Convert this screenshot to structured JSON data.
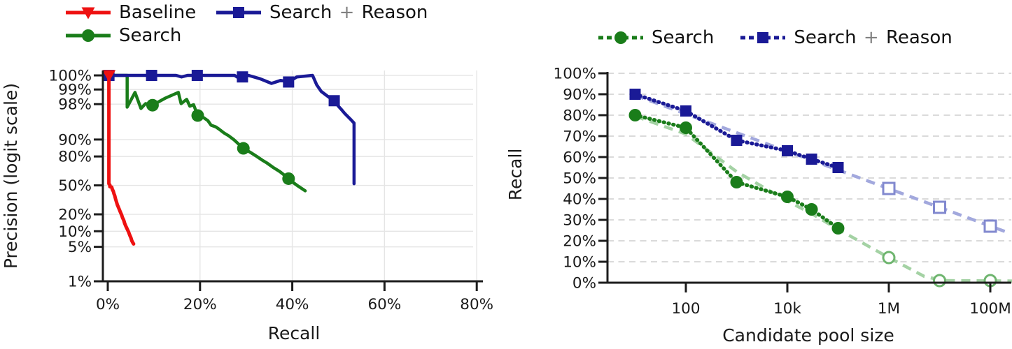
{
  "colors": {
    "baseline_red": "#ee1111",
    "search_green": "#1a7d1a",
    "reason_navy": "#1a1a96",
    "trend_navy": "#a2a8dd",
    "trend_green": "#a4d2a4",
    "hollow_navy": "#8289cf",
    "hollow_green": "#6fb56f",
    "grid_left": "#e5e5e5",
    "grid_right": "#dadada",
    "axis": "#1c1c1c",
    "text": "#1a1a1a",
    "plus_sign": "#808080"
  },
  "chart_data": [
    {
      "type": "line",
      "title": "",
      "xlabel": "Recall",
      "ylabel": "Precision (logit scale)",
      "y_scale": "logit",
      "x_scale": "linear",
      "grid": true,
      "legend_position": "top",
      "xlim": [
        0,
        83
      ],
      "x_ticks": [
        {
          "label": "0%",
          "value": 0
        },
        {
          "label": "20%",
          "value": 20
        },
        {
          "label": "40%",
          "value": 40
        },
        {
          "label": "60%",
          "value": 60
        },
        {
          "label": "80%",
          "value": 80
        }
      ],
      "y_ticks": [
        {
          "label": "100%",
          "value": 100
        },
        {
          "label": "99%",
          "value": 99
        },
        {
          "label": "98%",
          "value": 98
        },
        {
          "label": "90%",
          "value": 90
        },
        {
          "label": "80%",
          "value": 80
        },
        {
          "label": "50%",
          "value": 50
        },
        {
          "label": "20%",
          "value": 20
        },
        {
          "label": "10%",
          "value": 10
        },
        {
          "label": "5%",
          "value": 5
        },
        {
          "label": "1%",
          "value": 1
        }
      ],
      "legend": [
        {
          "label": "Baseline",
          "series": "Baseline"
        },
        {
          "label": "Search + Reason",
          "series": "Search + Reason"
        },
        {
          "label": "Search",
          "series": "Search"
        }
      ],
      "series": [
        {
          "name": "Search",
          "marker": "circle",
          "line": "solid",
          "color_key": "search_green",
          "points": [
            [
              0,
              100
            ],
            [
              4.2,
              100
            ],
            [
              4.2,
              97.7
            ],
            [
              5.9,
              98.85
            ],
            [
              7.2,
              97.55
            ],
            [
              8.2,
              98.05
            ],
            [
              9.7,
              97.9
            ],
            [
              12.5,
              98.5
            ],
            [
              15.3,
              98.85
            ],
            [
              15.9,
              98.05
            ],
            [
              17.1,
              98.4
            ],
            [
              17.8,
              97.8
            ],
            [
              18.6,
              97.95
            ],
            [
              19.5,
              96.6
            ],
            [
              20.7,
              96.3
            ],
            [
              21.7,
              95.7
            ],
            [
              22.4,
              94.7
            ],
            [
              23.4,
              94.3
            ],
            [
              24.1,
              93.7
            ],
            [
              25.2,
              92.5
            ],
            [
              26.2,
              91.5
            ],
            [
              27.3,
              90
            ],
            [
              28.3,
              88
            ],
            [
              29.4,
              85.5
            ],
            [
              30.9,
              83
            ],
            [
              32.3,
              80
            ],
            [
              33.5,
              77
            ],
            [
              34.5,
              74.5
            ],
            [
              35.8,
              70.5
            ],
            [
              37.3,
              66
            ],
            [
              38.3,
              62
            ],
            [
              39.2,
              58
            ],
            [
              40.3,
              53
            ],
            [
              41.3,
              49
            ],
            [
              42.8,
              43.5
            ]
          ],
          "marker_points": [
            [
              9.7,
              97.9
            ],
            [
              19.5,
              96.6
            ],
            [
              29.4,
              85.5
            ],
            [
              39.2,
              58
            ]
          ]
        },
        {
          "name": "Search + Reason",
          "marker": "square",
          "line": "solid",
          "color_key": "reason_navy",
          "points": [
            [
              0,
              100
            ],
            [
              14.8,
              100
            ],
            [
              16,
              99.45
            ],
            [
              17.3,
              99.55
            ],
            [
              19.4,
              100
            ],
            [
              22,
              99.85
            ],
            [
              24,
              99.55
            ],
            [
              27.5,
              99.6
            ],
            [
              28.6,
              99.4
            ],
            [
              30.5,
              99.5
            ],
            [
              33,
              99.4
            ],
            [
              35.5,
              99.25
            ],
            [
              37.5,
              99.35
            ],
            [
              39.2,
              99.3
            ],
            [
              41,
              99.45
            ],
            [
              44.4,
              99.5
            ],
            [
              45.3,
              99.2
            ],
            [
              46.3,
              98.9
            ],
            [
              47.3,
              98.7
            ],
            [
              48.2,
              98.5
            ],
            [
              49.1,
              98.3
            ],
            [
              50,
              97.8
            ],
            [
              50.7,
              97.4
            ],
            [
              51.4,
              96.9
            ],
            [
              52.1,
              96.4
            ],
            [
              52.8,
              95.8
            ],
            [
              53.4,
              95.2
            ],
            [
              53.4,
              52
            ]
          ],
          "marker_points": [
            [
              0.25,
              100
            ],
            [
              9.5,
              100
            ],
            [
              19.4,
              100
            ],
            [
              29.2,
              99.45
            ],
            [
              39.2,
              99.3
            ],
            [
              49.1,
              98.3
            ]
          ]
        },
        {
          "name": "Baseline",
          "marker": "triangle-down",
          "line": "solid",
          "color_key": "baseline_red",
          "points": [
            [
              0.25,
              100
            ],
            [
              0.25,
              52
            ],
            [
              0.45,
              50.5
            ],
            [
              0.45,
              48.5
            ],
            [
              0.85,
              48
            ],
            [
              1,
              45
            ],
            [
              1.2,
              43
            ],
            [
              1.35,
              40
            ],
            [
              1.5,
              38
            ],
            [
              1.7,
              34
            ],
            [
              1.9,
              31
            ],
            [
              2.1,
              28
            ],
            [
              2.4,
              25
            ],
            [
              2.7,
              22
            ],
            [
              3,
              19.5
            ],
            [
              3.2,
              17.5
            ],
            [
              3.45,
              16
            ],
            [
              3.65,
              14
            ],
            [
              3.9,
              12.5
            ],
            [
              4.2,
              11
            ],
            [
              4.5,
              9.7
            ],
            [
              4.75,
              8.5
            ],
            [
              5,
              7.6
            ],
            [
              5.2,
              6.6
            ],
            [
              5.4,
              6.1
            ],
            [
              5.6,
              5.7
            ]
          ],
          "marker_points": [
            [
              0.25,
              100
            ]
          ]
        }
      ]
    },
    {
      "type": "line",
      "title": "",
      "xlabel": "Candidate pool size",
      "ylabel": "Recall",
      "y_scale": "linear",
      "x_scale": "log10",
      "grid": "dashed-horizontal",
      "legend_position": "top",
      "ylim": [
        0,
        100
      ],
      "x_ticks": [
        {
          "label": "100",
          "value": 100
        },
        {
          "label": "10k",
          "value": 10000
        },
        {
          "label": "1M",
          "value": 1000000
        },
        {
          "label": "100M",
          "value": 100000000
        }
      ],
      "y_ticks": [
        {
          "label": "0%",
          "value": 0
        },
        {
          "label": "10%",
          "value": 10
        },
        {
          "label": "20%",
          "value": 20
        },
        {
          "label": "30%",
          "value": 30
        },
        {
          "label": "40%",
          "value": 40
        },
        {
          "label": "50%",
          "value": 50
        },
        {
          "label": "60%",
          "value": 60
        },
        {
          "label": "70%",
          "value": 70
        },
        {
          "label": "80%",
          "value": 80
        },
        {
          "label": "90%",
          "value": 90
        },
        {
          "label": "100%",
          "value": 100
        }
      ],
      "legend": [
        {
          "label": "Search",
          "series": "Search"
        },
        {
          "label": "Search + Reason",
          "series": "Search + Reason"
        }
      ],
      "series": [
        {
          "name": "Search",
          "marker": "circle",
          "color_key": "search_green",
          "trend_color_key": "trend_green",
          "hollow_color_key": "hollow_green",
          "solid_points": [
            [
              10,
              80
            ],
            [
              100,
              74
            ],
            [
              1000,
              48
            ],
            [
              10000,
              41
            ],
            [
              30000,
              35
            ],
            [
              100000,
              26
            ]
          ],
          "hollow_points": [
            [
              1000000,
              12
            ],
            [
              10000000,
              1
            ],
            [
              100000000,
              1
            ]
          ],
          "trend_points": [
            [
              10,
              79.5
            ],
            [
              100,
              71
            ],
            [
              1000,
              53
            ],
            [
              10000,
              39
            ],
            [
              30000,
              33
            ],
            [
              100000,
              25.5
            ],
            [
              1000000,
              12
            ],
            [
              5000000,
              3
            ],
            [
              12000000,
              1
            ],
            [
              280000000,
              0.8
            ]
          ]
        },
        {
          "name": "Search + Reason",
          "marker": "square",
          "color_key": "reason_navy",
          "trend_color_key": "trend_navy",
          "hollow_color_key": "hollow_navy",
          "solid_points": [
            [
              10,
              90
            ],
            [
              100,
              82
            ],
            [
              1000,
              68
            ],
            [
              10000,
              63
            ],
            [
              30000,
              59
            ],
            [
              100000,
              55
            ]
          ],
          "hollow_points": [
            [
              1000000,
              45
            ],
            [
              10000000,
              36
            ],
            [
              100000000,
              27
            ]
          ],
          "trend_points": [
            [
              10,
              89.5
            ],
            [
              250000000,
              23.5
            ]
          ]
        }
      ]
    }
  ]
}
